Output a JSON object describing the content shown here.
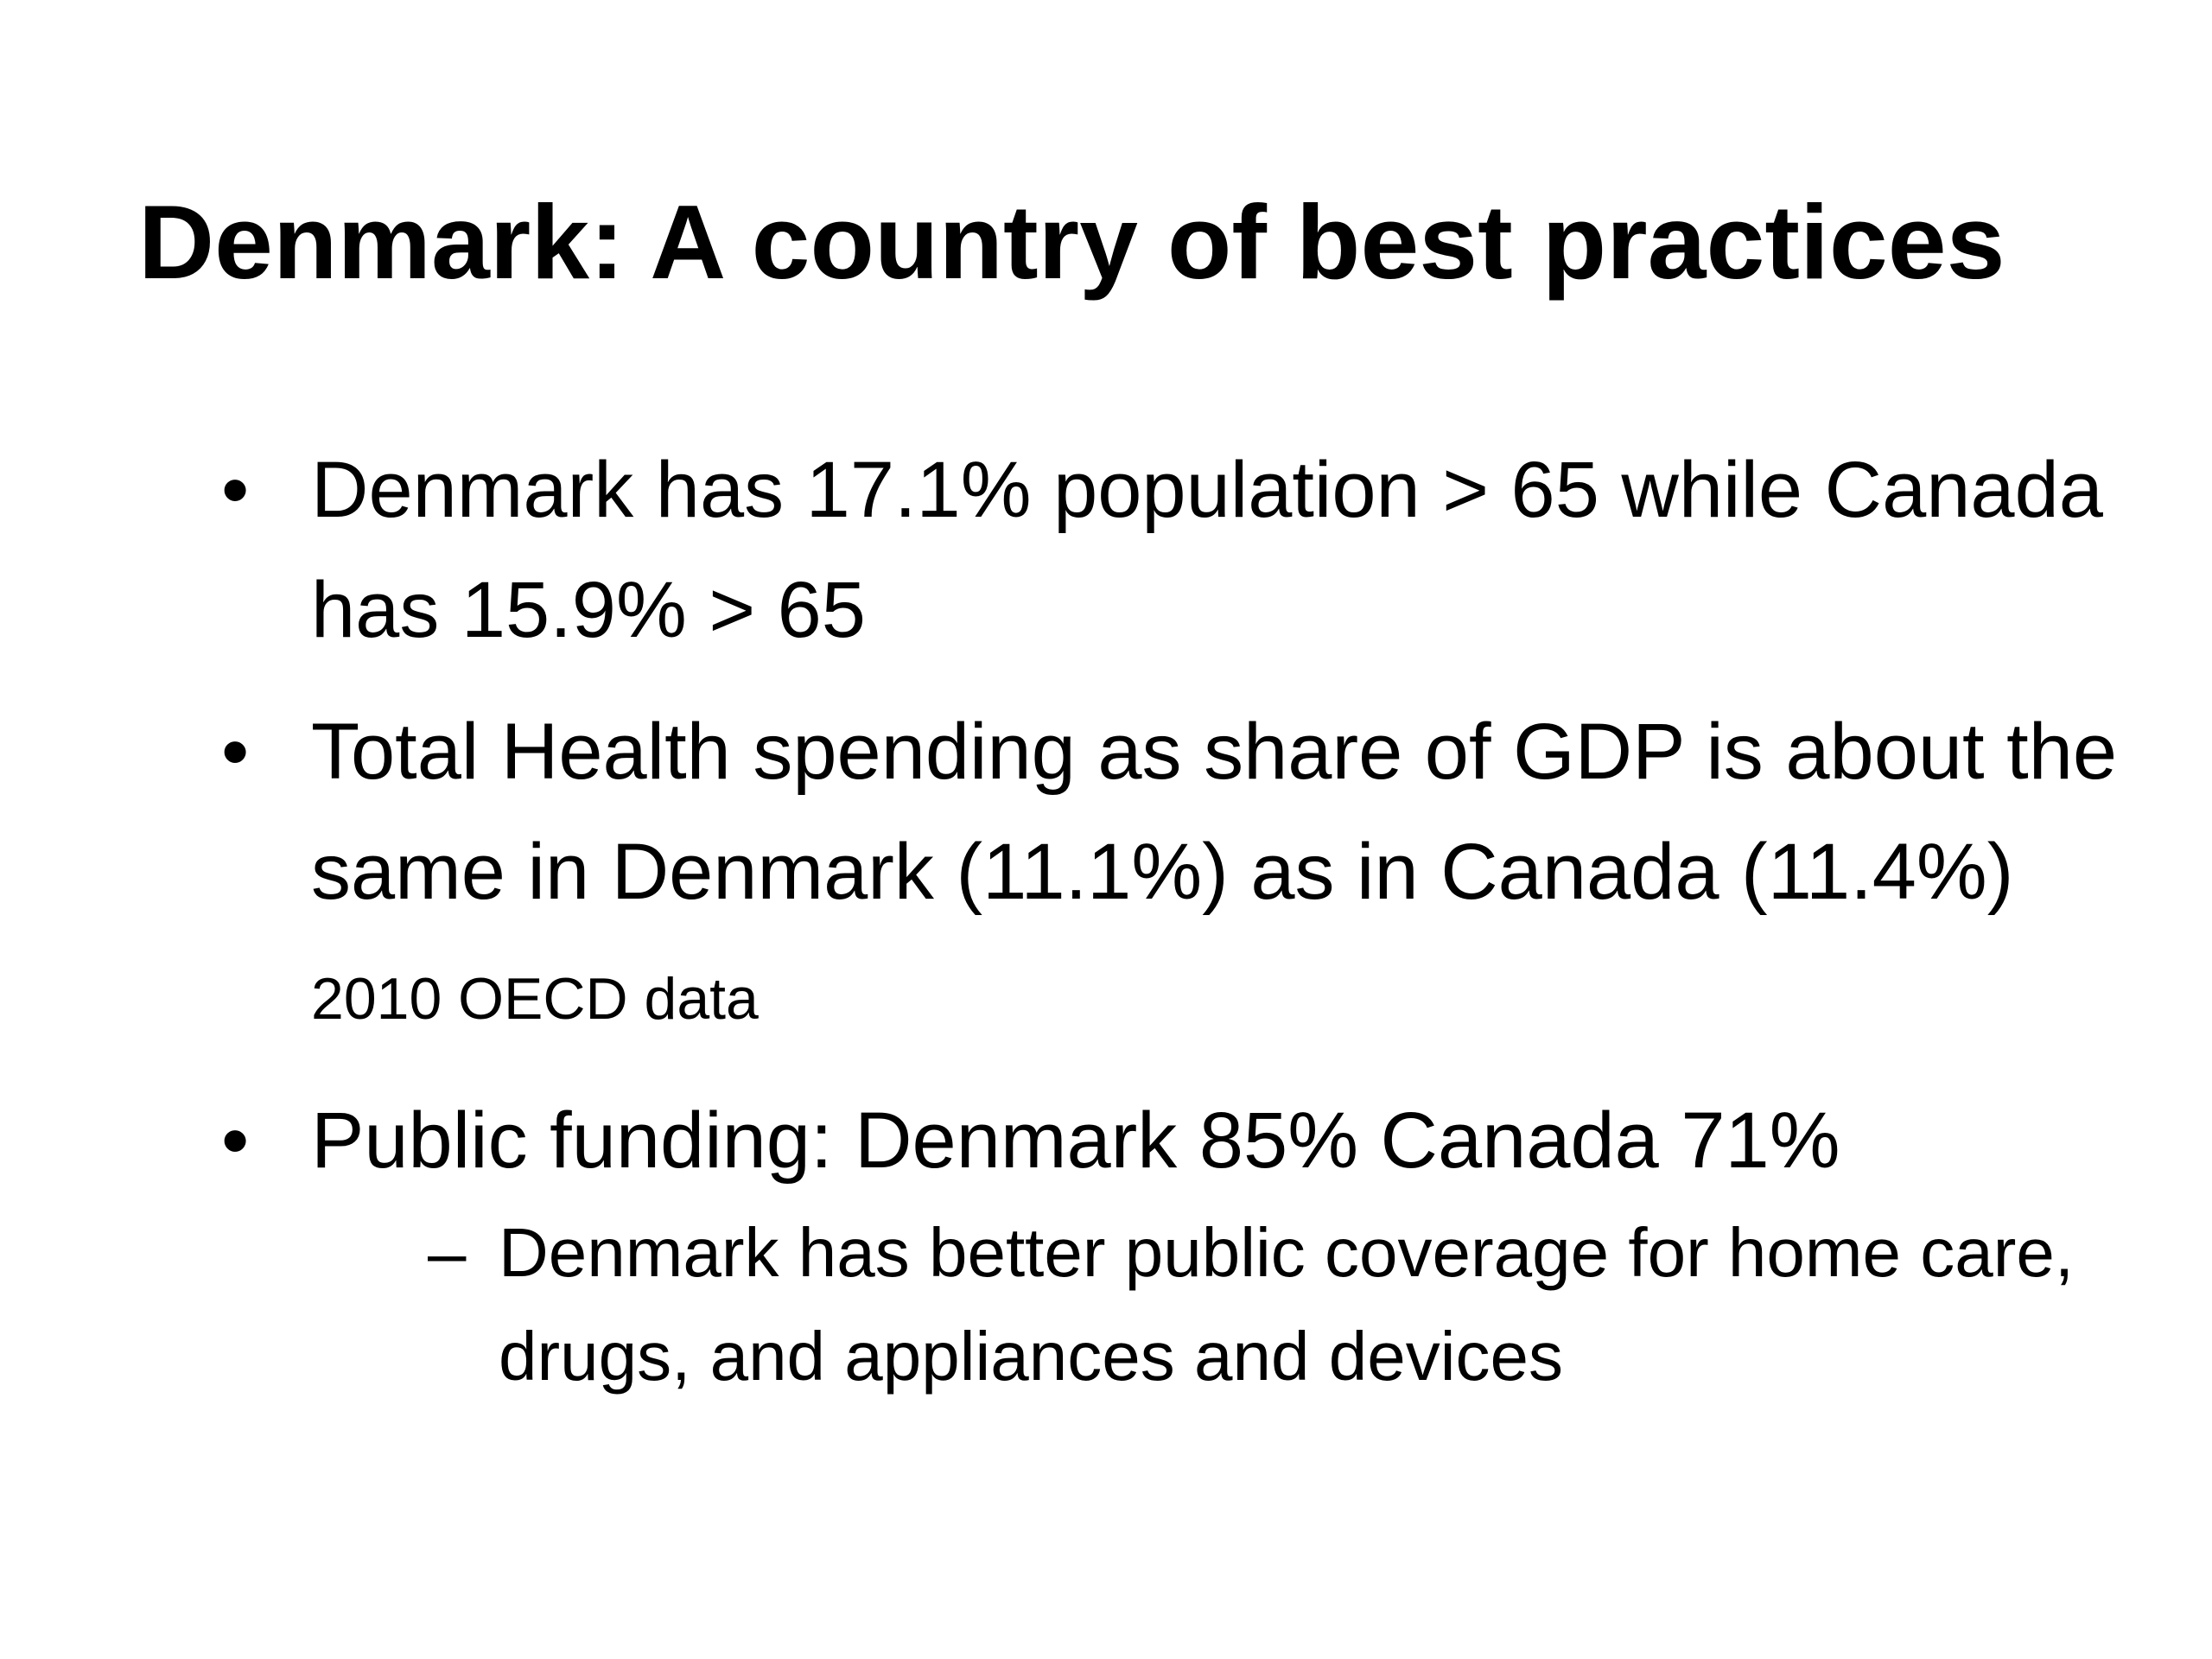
{
  "slide": {
    "title": "Denmark: A  country of best practices",
    "bullets": [
      {
        "marker": "•",
        "text": "Denmark has 17.1% population > 65 while Canada has 15.9% > 65"
      },
      {
        "marker": "•",
        "text": "Total Health spending as share of GDP is about the same in Denmark (11.1%) as in Canada (11.4%)",
        "note": "2010 OECD data"
      },
      {
        "marker": "•",
        "text": "Public funding: Denmark 85% Canada 71%",
        "sub_items": [
          {
            "marker": "–",
            "text": "Denmark has better public coverage for home care, drugs, and appliances and devices"
          }
        ]
      }
    ]
  }
}
